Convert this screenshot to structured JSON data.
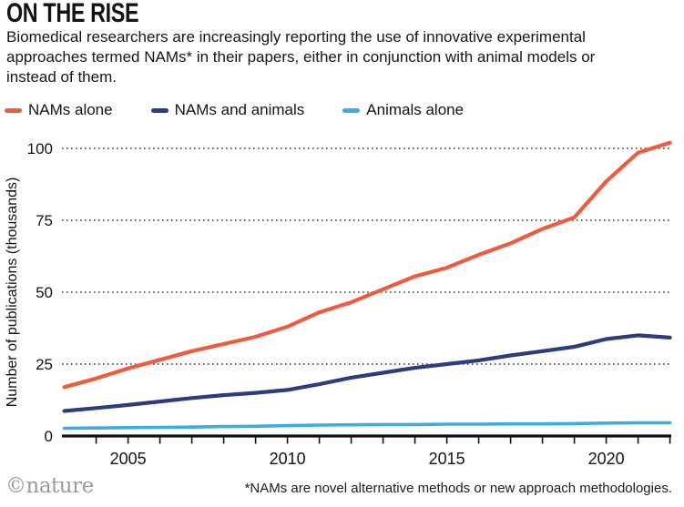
{
  "header": {
    "title": "ON THE RISE",
    "subtitle": "Biomedical researchers are increasingly reporting the use of innovative experimental\napproaches termed NAMs* in their papers, either in conjunction with animal models or\ninstead of them."
  },
  "chart_data": {
    "type": "line",
    "title": "ON THE RISE",
    "ylabel": "Number of publications (thousands)",
    "xlabel": "",
    "ylim": [
      0,
      100
    ],
    "xlim": [
      2003,
      2022
    ],
    "yticks": [
      0,
      25,
      50,
      75,
      100
    ],
    "xtick_labels": [
      2005,
      2010,
      2015,
      2020
    ],
    "grid": "horizontal-dotted",
    "legend_position": "top-left",
    "x": [
      2003,
      2004,
      2005,
      2006,
      2007,
      2008,
      2009,
      2010,
      2011,
      2012,
      2013,
      2014,
      2015,
      2016,
      2017,
      2018,
      2019,
      2020,
      2021,
      2022
    ],
    "series": [
      {
        "name": "NAMs alone",
        "color": "#EE5B3F",
        "values": [
          17,
          20,
          23.5,
          26.5,
          29.5,
          32,
          34.5,
          38,
          43,
          46.5,
          51,
          55.5,
          58.5,
          63,
          67,
          72,
          76,
          88.5,
          98.5,
          102
        ]
      },
      {
        "name": "NAMs and animals",
        "color": "#2C3C7D",
        "values": [
          8.7,
          9.7,
          10.8,
          12,
          13.2,
          14.2,
          15,
          16,
          18,
          20.3,
          22,
          23.7,
          25,
          26.3,
          28,
          29.5,
          31,
          33.7,
          35,
          34.2
        ]
      },
      {
        "name": "Animals alone",
        "color": "#3DACE2",
        "values": [
          2.7,
          2.8,
          2.9,
          3,
          3.1,
          3.3,
          3.4,
          3.6,
          3.8,
          3.9,
          4,
          4,
          4.1,
          4.1,
          4.2,
          4.2,
          4.3,
          4.5,
          4.6,
          4.6
        ]
      }
    ]
  },
  "footer": {
    "footnote": "*NAMs are novel alternative methods or new approach methodologies.",
    "logo": "©nature"
  }
}
